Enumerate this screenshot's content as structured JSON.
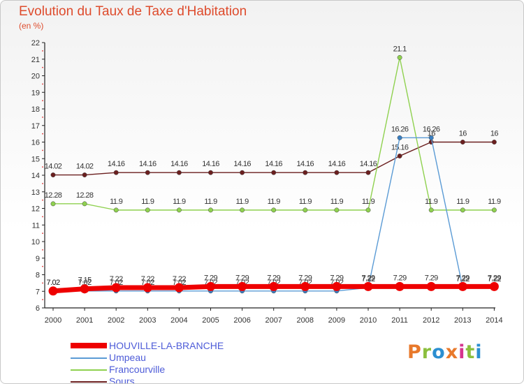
{
  "header": {
    "title": "Evolution du Taux de Taxe d'Habitation",
    "unit": "(en %)"
  },
  "logo": {
    "text": "Proxiti",
    "colors": [
      "#e8792b",
      "#8bbf3e",
      "#2b8fd1",
      "#e8792b",
      "#d6358e",
      "#8bbf3e",
      "#2b8fd1"
    ]
  },
  "chart_data": {
    "type": "line",
    "x": [
      2000,
      2001,
      2002,
      2003,
      2004,
      2005,
      2006,
      2007,
      2008,
      2009,
      2010,
      2011,
      2012,
      2013,
      2014
    ],
    "ylim": [
      6,
      22
    ],
    "yticks": [
      6,
      7,
      8,
      9,
      10,
      11,
      12,
      13,
      14,
      15,
      16,
      17,
      18,
      19,
      20,
      21,
      22
    ],
    "grid": false,
    "legend_position": "bottom-left",
    "series": [
      {
        "name": "Sours",
        "color": "#6b1f1f",
        "marker": "#6b1f1f",
        "values": [
          14.02,
          14.02,
          14.16,
          14.16,
          14.16,
          14.16,
          14.16,
          14.16,
          14.16,
          14.16,
          14.16,
          15.16,
          16,
          16,
          16
        ],
        "labels": [
          "14.02",
          "14.02",
          "14.16",
          "14.16",
          "14.16",
          "14.16",
          "14.16",
          "14.16",
          "14.16",
          "14.16",
          "14.16",
          "15.16",
          "16",
          "16",
          "16"
        ]
      },
      {
        "name": "Francourville",
        "color": "#8fd14f",
        "marker": "#8fd14f",
        "values": [
          12.28,
          12.28,
          11.9,
          11.9,
          11.9,
          11.9,
          11.9,
          11.9,
          11.9,
          11.9,
          11.9,
          21.1,
          11.9,
          11.9,
          11.9
        ],
        "labels": [
          "12.28",
          "12.28",
          "11.9",
          "11.9",
          "11.9",
          "11.9",
          "11.9",
          "11.9",
          "11.9",
          "11.9",
          "11.9",
          "21.1",
          "11.9",
          "11.9",
          "11.9"
        ]
      },
      {
        "name": "Umpeau",
        "color": "#5b9bd5",
        "marker": "#3a7fc2",
        "values": [
          7.02,
          7.02,
          7.02,
          7.02,
          7.02,
          7.02,
          7.02,
          7.02,
          7.02,
          7.02,
          7.22,
          16.26,
          16.26,
          7.22,
          7.22
        ],
        "labels": [
          "7.02",
          "7.02",
          "7.02",
          "7.02",
          "7.02",
          "7.02",
          "7.02",
          "7.02",
          "7.02",
          "7.02",
          "7.22",
          "16.26",
          "16.26",
          "7.22",
          "7.22"
        ]
      },
      {
        "name": "HOUVILLE-LA-BRANCHE",
        "color": "#ee0000",
        "marker": "#ee0000",
        "thick": true,
        "values": [
          7.02,
          7.15,
          7.22,
          7.22,
          7.22,
          7.29,
          7.29,
          7.29,
          7.29,
          7.29,
          7.29,
          7.29,
          7.29,
          7.29,
          7.29
        ],
        "labels": [
          "7.02",
          "7.15",
          "7.22",
          "7.22",
          "7.22",
          "7.29",
          "7.29",
          "7.29",
          "7.29",
          "7.29",
          "7.29",
          "7.29",
          "7.29",
          "7.29",
          "7.29"
        ]
      }
    ],
    "legend": [
      "HOUVILLE-LA-BRANCHE",
      "Umpeau",
      "Francourville",
      "Sours"
    ]
  }
}
